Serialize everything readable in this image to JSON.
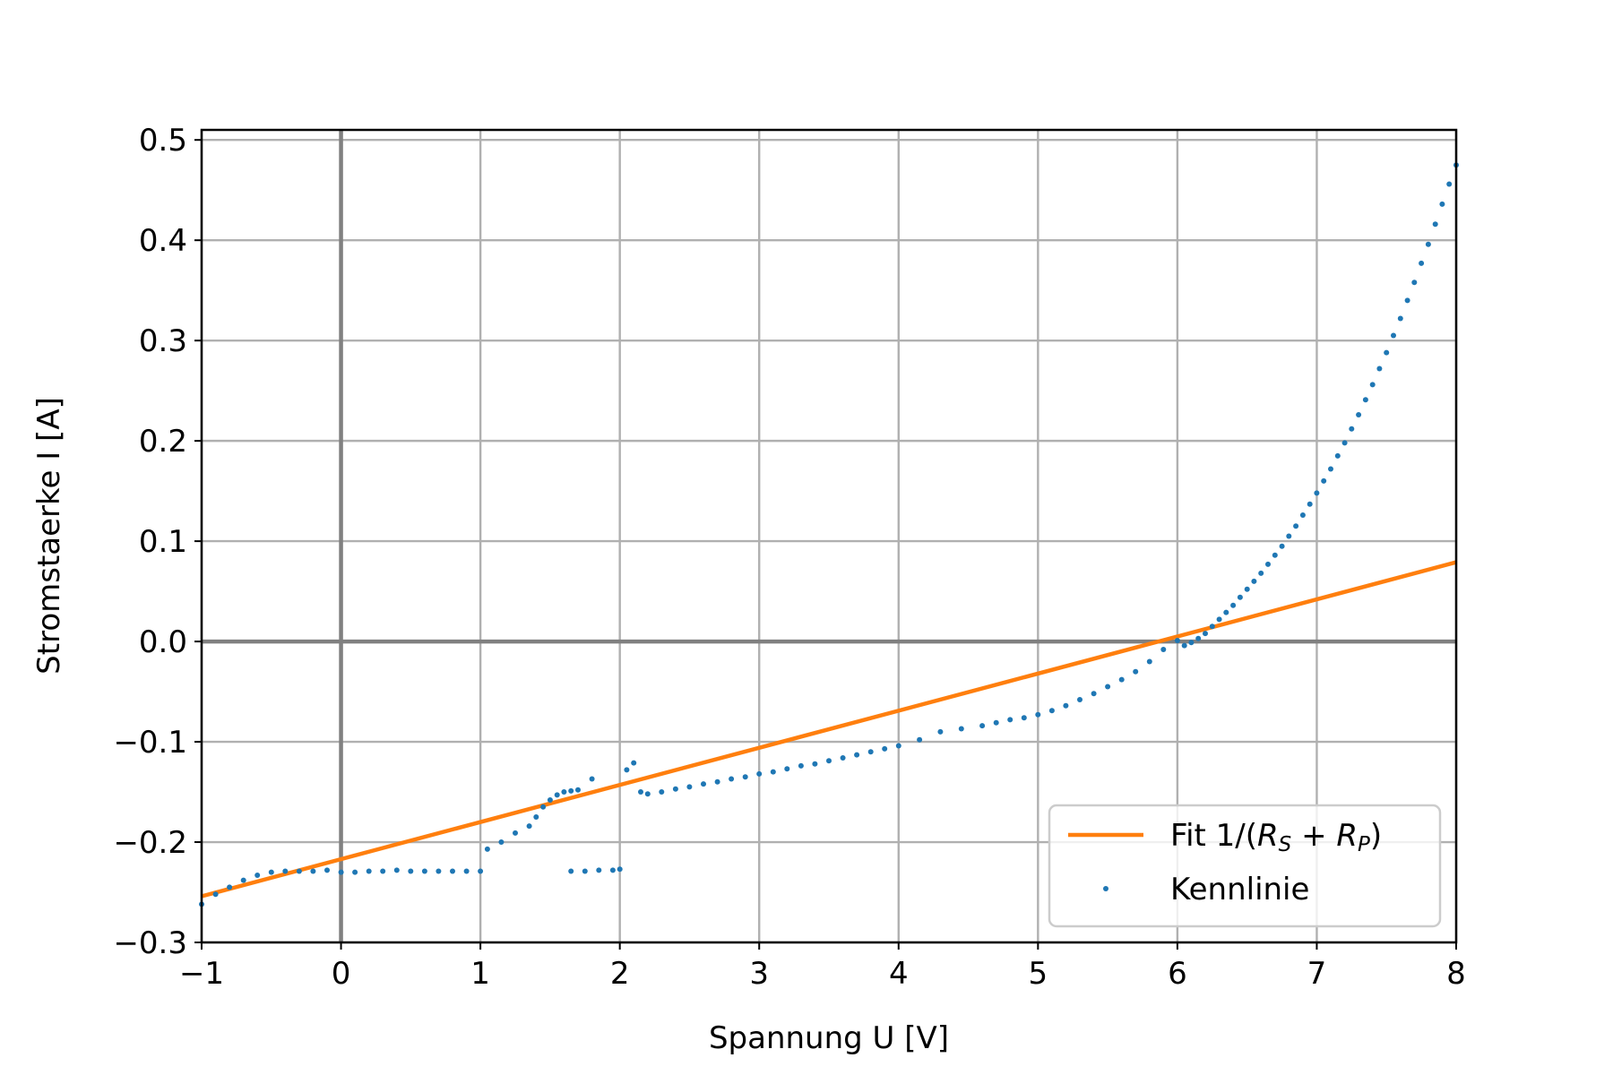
{
  "chart_data": {
    "type": "scatter",
    "title": "",
    "xlabel": "Spannung U [V]",
    "ylabel": "Stromstaerke I [A]",
    "xlim": [
      -1,
      8
    ],
    "ylim": [
      -0.3,
      0.51
    ],
    "xticks": [
      -1,
      0,
      1,
      2,
      3,
      4,
      5,
      6,
      7,
      8
    ],
    "yticks": [
      -0.3,
      -0.2,
      -0.1,
      0.0,
      0.1,
      0.2,
      0.3,
      0.4,
      0.5
    ],
    "xtick_labels": [
      "−1",
      "0",
      "1",
      "2",
      "3",
      "4",
      "5",
      "6",
      "7",
      "8"
    ],
    "ytick_labels": [
      "−0.3",
      "−0.2",
      "−0.1",
      "0.0",
      "0.1",
      "0.2",
      "0.3",
      "0.4",
      "0.5"
    ],
    "grid": true,
    "zero_lines": true,
    "legend_position": "lower right",
    "series": [
      {
        "name": "Fit 1/(R_S + R_P)",
        "kind": "line",
        "color": "#ff7f0e",
        "x": [
          -1,
          8
        ],
        "y": [
          -0.254,
          0.079
        ]
      },
      {
        "name": "Kennlinie",
        "kind": "scatter",
        "color": "#1f77b4",
        "x": [
          -1.0,
          -0.9,
          -0.8,
          -0.7,
          -0.6,
          -0.5,
          -0.4,
          -0.3,
          -0.2,
          -0.1,
          0.0,
          0.1,
          0.2,
          0.3,
          0.4,
          0.5,
          0.6,
          0.7,
          0.8,
          0.9,
          1.0,
          1.05,
          1.15,
          1.25,
          1.35,
          1.4,
          1.45,
          1.5,
          1.55,
          1.6,
          1.65,
          1.7,
          1.8,
          1.65,
          1.75,
          1.85,
          1.95,
          2.0,
          2.05,
          2.1,
          2.15,
          2.2,
          2.3,
          2.4,
          2.5,
          2.6,
          2.7,
          2.8,
          2.9,
          3.0,
          3.1,
          3.2,
          3.3,
          3.4,
          3.5,
          3.6,
          3.7,
          3.8,
          3.9,
          4.0,
          4.15,
          4.3,
          4.45,
          4.6,
          4.7,
          4.8,
          4.9,
          5.0,
          5.1,
          5.2,
          5.3,
          5.4,
          5.5,
          5.6,
          5.7,
          5.8,
          5.9,
          6.0,
          6.05,
          6.1,
          6.15,
          6.2,
          6.25,
          6.3,
          6.35,
          6.4,
          6.45,
          6.5,
          6.55,
          6.6,
          6.65,
          6.7,
          6.75,
          6.8,
          6.85,
          6.9,
          6.95,
          7.0,
          7.05,
          7.1,
          7.15,
          7.2,
          7.25,
          7.3,
          7.35,
          7.4,
          7.45,
          7.5,
          7.55,
          7.6,
          7.65,
          7.7,
          7.75,
          7.8,
          7.85,
          7.9,
          7.95,
          8.0
        ],
        "y": [
          -0.262,
          -0.252,
          -0.245,
          -0.238,
          -0.233,
          -0.23,
          -0.229,
          -0.229,
          -0.229,
          -0.228,
          -0.23,
          -0.23,
          -0.229,
          -0.229,
          -0.228,
          -0.229,
          -0.229,
          -0.229,
          -0.229,
          -0.229,
          -0.229,
          -0.207,
          -0.2,
          -0.191,
          -0.184,
          -0.175,
          -0.165,
          -0.158,
          -0.153,
          -0.15,
          -0.149,
          -0.148,
          -0.137,
          -0.229,
          -0.229,
          -0.228,
          -0.228,
          -0.227,
          -0.128,
          -0.121,
          -0.15,
          -0.152,
          -0.15,
          -0.147,
          -0.145,
          -0.142,
          -0.14,
          -0.137,
          -0.135,
          -0.132,
          -0.13,
          -0.127,
          -0.124,
          -0.122,
          -0.119,
          -0.116,
          -0.113,
          -0.11,
          -0.107,
          -0.104,
          -0.098,
          -0.09,
          -0.087,
          -0.084,
          -0.081,
          -0.078,
          -0.076,
          -0.073,
          -0.069,
          -0.064,
          -0.058,
          -0.052,
          -0.045,
          -0.038,
          -0.03,
          -0.02,
          -0.008,
          0.001,
          -0.004,
          -0.001,
          0.003,
          0.008,
          0.015,
          0.022,
          0.029,
          0.036,
          0.044,
          0.052,
          0.06,
          0.068,
          0.077,
          0.086,
          0.095,
          0.105,
          0.115,
          0.126,
          0.137,
          0.148,
          0.16,
          0.172,
          0.185,
          0.198,
          0.212,
          0.226,
          0.241,
          0.256,
          0.272,
          0.288,
          0.305,
          0.322,
          0.34,
          0.358,
          0.377,
          0.396,
          0.416,
          0.436,
          0.456,
          0.475
        ]
      }
    ],
    "legend": {
      "fit_label_prefix": "Fit 1/(",
      "fit_label_rs_main": "R",
      "fit_label_rs_sub": "S",
      "fit_label_plus": " + ",
      "fit_label_rp_main": "R",
      "fit_label_rp_sub": "P",
      "fit_label_suffix": ")",
      "data_label": "Kennlinie"
    }
  }
}
